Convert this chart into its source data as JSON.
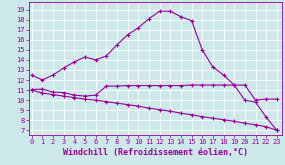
{
  "xlabel": "Windchill (Refroidissement éolien,°C)",
  "bg_color": "#cce8e8",
  "grid_color": "#ffffff",
  "line_color": "#990099",
  "x_ticks": [
    0,
    1,
    2,
    3,
    4,
    5,
    6,
    7,
    8,
    9,
    10,
    11,
    12,
    13,
    14,
    15,
    16,
    17,
    18,
    19,
    20,
    21,
    22,
    23
  ],
  "y_ticks": [
    7,
    8,
    9,
    10,
    11,
    12,
    13,
    14,
    15,
    16,
    17,
    18,
    19
  ],
  "ylim": [
    6.5,
    19.8
  ],
  "xlim": [
    -0.3,
    23.5
  ],
  "line1_x": [
    0,
    1,
    2,
    3,
    4,
    5,
    6,
    7,
    8,
    9,
    10,
    11,
    12,
    13,
    14,
    15,
    16,
    17,
    18,
    19,
    20,
    21,
    22,
    23
  ],
  "line1_y": [
    12.5,
    12.0,
    12.5,
    13.2,
    13.8,
    14.3,
    14.0,
    14.4,
    15.5,
    16.5,
    17.2,
    18.1,
    18.85,
    18.85,
    18.3,
    17.9,
    15.0,
    13.3,
    12.5,
    11.5,
    10.0,
    9.8,
    8.3,
    7.0
  ],
  "line2_x": [
    0,
    1,
    2,
    3,
    4,
    5,
    6,
    7,
    8,
    9,
    10,
    11,
    12,
    13,
    14,
    15,
    16,
    17,
    18,
    19,
    20,
    21,
    22,
    23
  ],
  "line2_y": [
    11.05,
    11.1,
    10.8,
    10.75,
    10.5,
    10.4,
    10.5,
    11.4,
    11.4,
    11.45,
    11.45,
    11.45,
    11.45,
    11.45,
    11.45,
    11.5,
    11.5,
    11.5,
    11.5,
    11.5,
    11.5,
    10.0,
    10.1,
    10.1
  ],
  "line3_x": [
    0,
    1,
    2,
    3,
    4,
    5,
    6,
    7,
    8,
    9,
    10,
    11,
    12,
    13,
    14,
    15,
    16,
    17,
    18,
    19,
    20,
    21,
    22,
    23
  ],
  "line3_y": [
    11.0,
    10.7,
    10.55,
    10.4,
    10.25,
    10.1,
    10.0,
    9.85,
    9.7,
    9.55,
    9.4,
    9.2,
    9.05,
    8.9,
    8.7,
    8.55,
    8.35,
    8.2,
    8.05,
    7.9,
    7.7,
    7.55,
    7.35,
    7.0
  ],
  "marker": "+",
  "markersize": 3,
  "linewidth": 0.8,
  "tick_fontsize": 5.0,
  "xlabel_fontsize": 6.0
}
